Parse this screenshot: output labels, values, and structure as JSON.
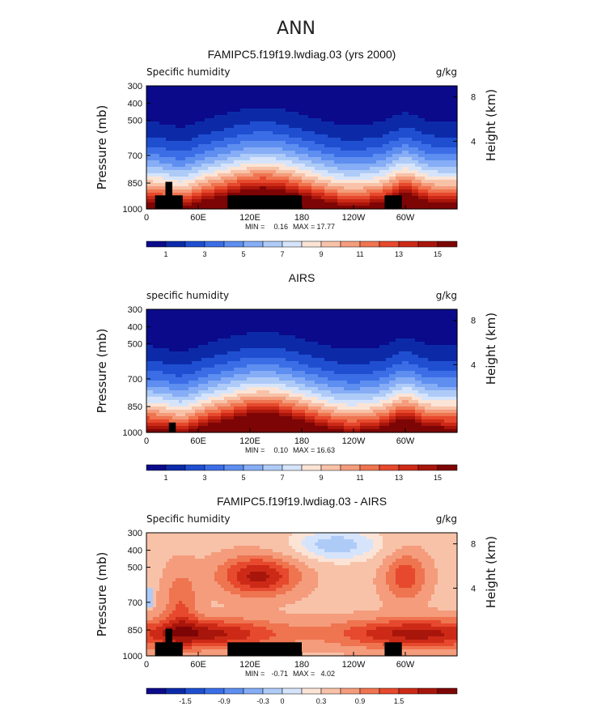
{
  "figure_title": "ANN",
  "chart_data": [
    {
      "type": "heatmap",
      "title": "FAMIPC5.f19f19.lwdiag.03 (yrs 2000)",
      "variable": "Specific humidity",
      "units": "g/kg",
      "ylabel": "Pressure (mb)",
      "ylabel_right": "Height (km)",
      "x_ticks": [
        "0",
        "60E",
        "120E",
        "180",
        "120W",
        "60W"
      ],
      "y_ticks": [
        "300",
        "400",
        "500",
        "700",
        "850",
        "1000"
      ],
      "y_ticks_right": [
        "8",
        "4"
      ],
      "min_label": "MIN =",
      "min": "0.16",
      "max_label": "MAX =",
      "max": "17.77",
      "colorbar_labels": [
        "1",
        "3",
        "5",
        "7",
        "9",
        "11",
        "13",
        "15"
      ],
      "colors": [
        "#0a0a8a",
        "#0c2aa8",
        "#1f4fd0",
        "#3b6ee6",
        "#5d8ef0",
        "#86adf5",
        "#aecbf8",
        "#d6e4fb",
        "#fbe4d6",
        "#f8c2a8",
        "#f49c7c",
        "#ef7450",
        "#e6492d",
        "#cc2a17",
        "#a8150b",
        "#7d0505"
      ],
      "kind": "abs",
      "land": "model"
    },
    {
      "type": "heatmap",
      "title": "AIRS",
      "variable": "specific humidity",
      "units": "g/kg",
      "ylabel": "Pressure (mb)",
      "ylabel_right": "Height (km)",
      "x_ticks": [
        "0",
        "60E",
        "120E",
        "180",
        "120W",
        "60W"
      ],
      "y_ticks": [
        "300",
        "400",
        "500",
        "700",
        "850",
        "1000"
      ],
      "y_ticks_right": [
        "8",
        "4"
      ],
      "min_label": "MIN =",
      "min": "0.10",
      "max_label": "MAX =",
      "max": "16.63",
      "colorbar_labels": [
        "1",
        "3",
        "5",
        "7",
        "9",
        "11",
        "13",
        "15"
      ],
      "colors": [
        "#0a0a8a",
        "#0c2aa8",
        "#1f4fd0",
        "#3b6ee6",
        "#5d8ef0",
        "#86adf5",
        "#aecbf8",
        "#d6e4fb",
        "#fbe4d6",
        "#f8c2a8",
        "#f49c7c",
        "#ef7450",
        "#e6492d",
        "#cc2a17",
        "#a8150b",
        "#7d0505"
      ],
      "kind": "abs",
      "land": "obs"
    },
    {
      "type": "heatmap",
      "title": "FAMIPC5.f19f19.lwdiag.03 - AIRS",
      "variable": "Specific humidity",
      "units": "g/kg",
      "ylabel": "Pressure (mb)",
      "ylabel_right": "Height (km)",
      "x_ticks": [
        "0",
        "60E",
        "120E",
        "180",
        "120W",
        "60W"
      ],
      "y_ticks": [
        "300",
        "400",
        "500",
        "700",
        "850",
        "1000"
      ],
      "y_ticks_right": [
        "8",
        "4"
      ],
      "min_label": "MIN =",
      "min": "-0.71",
      "max_label": "MAX =",
      "max": "4.02",
      "colorbar_labels": [
        "-1.5",
        "-0.9",
        "-0.3",
        "0",
        "0.3",
        "0.9",
        "1.5"
      ],
      "colors": [
        "#0a0a8a",
        "#0c2aa8",
        "#1f4fd0",
        "#3b6ee6",
        "#5d8ef0",
        "#86adf5",
        "#aecbf8",
        "#d6e4fb",
        "#fbe4d6",
        "#f8c2a8",
        "#f49c7c",
        "#ef7450",
        "#e6492d",
        "#cc2a17",
        "#a8150b",
        "#7d0505"
      ],
      "kind": "diff",
      "land": "model"
    }
  ]
}
